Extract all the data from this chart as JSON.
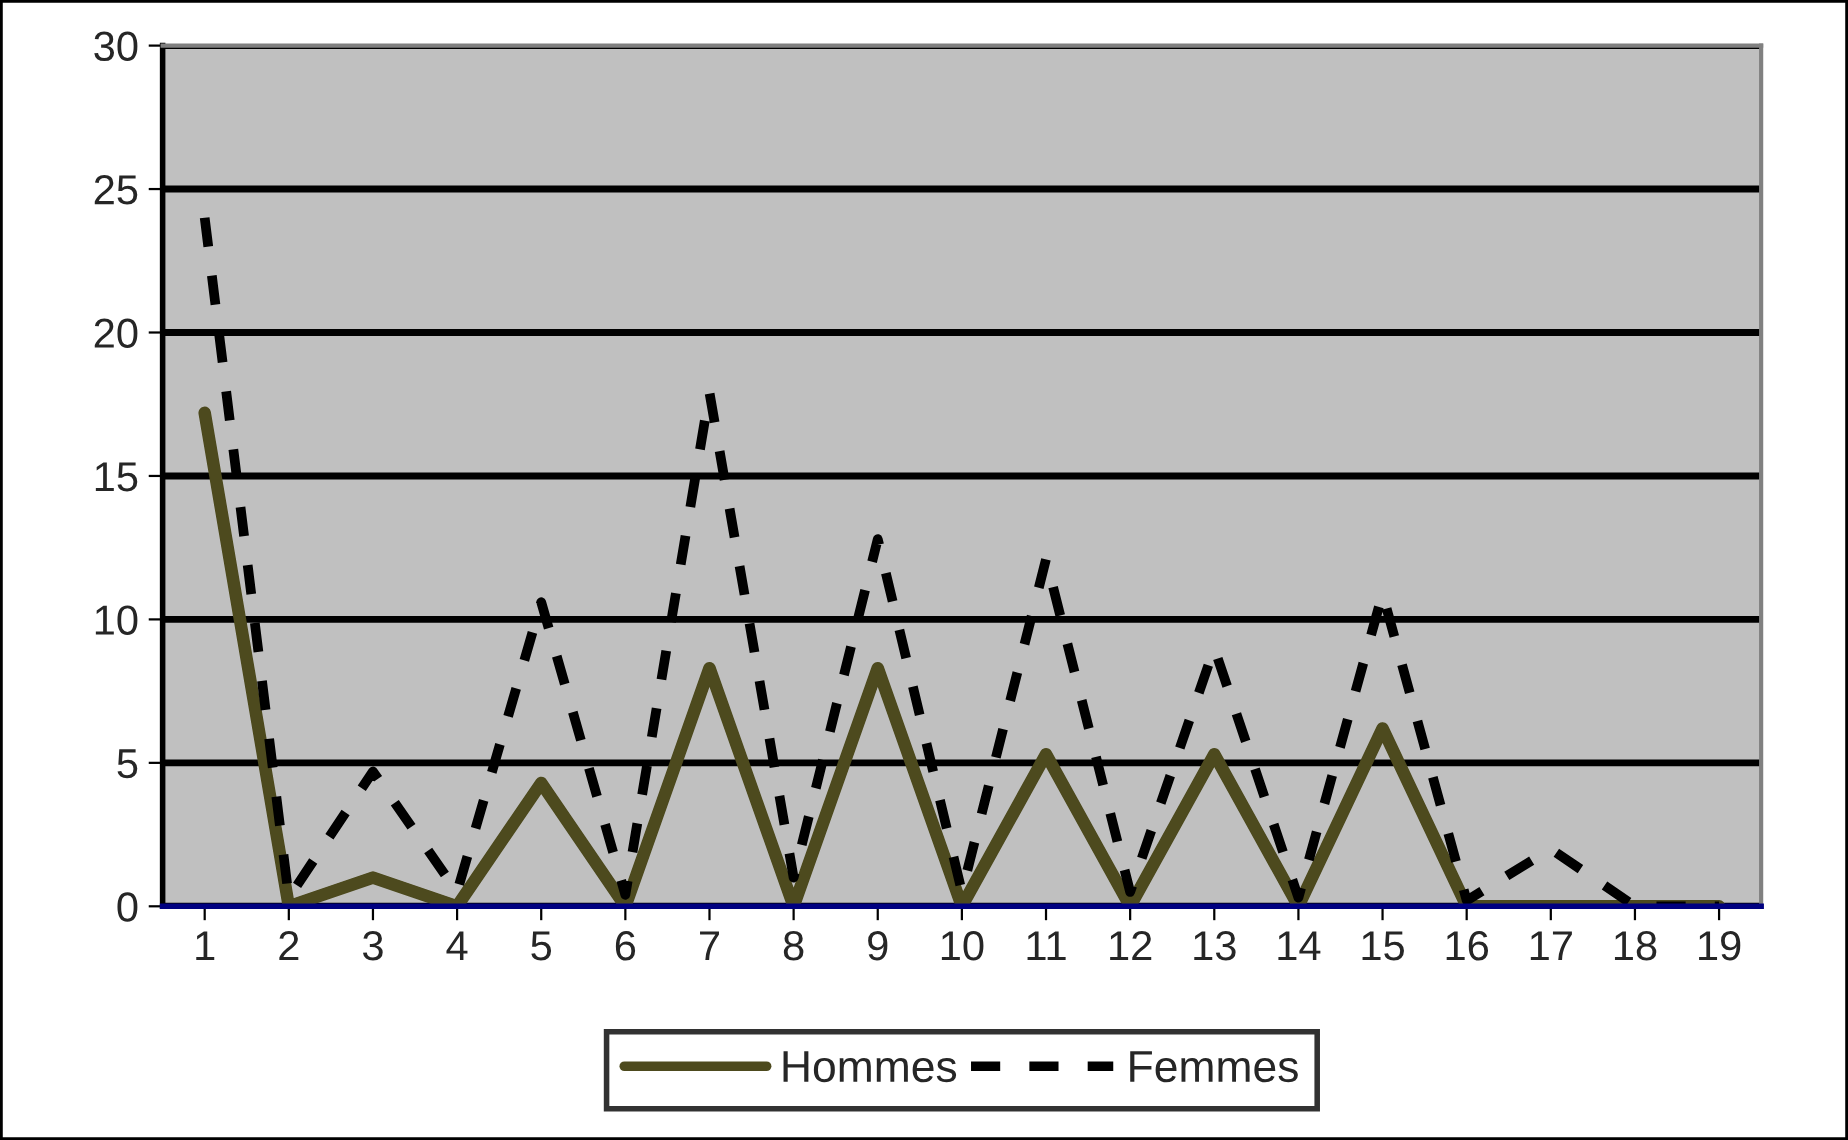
{
  "chart_data": {
    "type": "line",
    "categories": [
      "1",
      "2",
      "3",
      "4",
      "5",
      "6",
      "7",
      "8",
      "9",
      "10",
      "11",
      "12",
      "13",
      "14",
      "15",
      "16",
      "17",
      "18",
      "19"
    ],
    "series": [
      {
        "name": "Hommes",
        "color": "#4d4a1e",
        "line_style": "solid",
        "values": [
          17.2,
          0,
          1.0,
          0,
          4.3,
          0,
          8.3,
          0,
          8.3,
          0,
          5.3,
          0,
          5.3,
          0,
          6.2,
          0,
          0,
          0,
          0
        ]
      },
      {
        "name": "Femmes",
        "color": "#000000",
        "line_style": "dashed",
        "values": [
          24,
          0.3,
          4.7,
          0.5,
          10.6,
          0.4,
          17.9,
          1.0,
          12.8,
          0.5,
          12.1,
          0.5,
          9.0,
          0.3,
          10.9,
          0.2,
          2.0,
          0,
          0
        ]
      }
    ],
    "ylim": [
      0,
      30
    ],
    "yticks": [
      0,
      5,
      10,
      15,
      20,
      25,
      30
    ],
    "grid": "y",
    "legend": "bottom",
    "marker": "none"
  }
}
